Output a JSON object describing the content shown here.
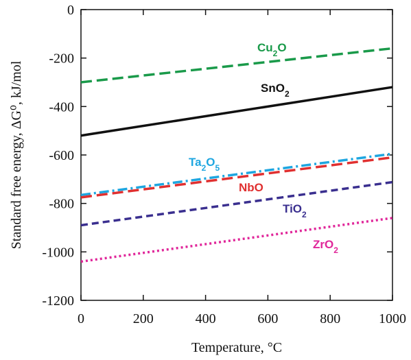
{
  "chart_data": {
    "type": "line",
    "xlabel": "Temperature, °C",
    "ylabel": "Standard free energy, ΔG⁰, kJ/mol",
    "xlim": [
      0,
      1000
    ],
    "ylim": [
      -1200,
      0
    ],
    "xticks": [
      0,
      200,
      400,
      600,
      800,
      1000
    ],
    "yticks": [
      0,
      -200,
      -400,
      -600,
      -800,
      -1000,
      -1200
    ],
    "grid": false,
    "series": [
      {
        "name": "Cu2O",
        "color": "#1a9a4a",
        "dash": "long-dash",
        "x": [
          0,
          1000
        ],
        "y": [
          -300,
          -160
        ]
      },
      {
        "name": "SnO2",
        "color": "#111111",
        "dash": "solid",
        "x": [
          0,
          1000
        ],
        "y": [
          -520,
          -320
        ]
      },
      {
        "name": "Ta2O5",
        "color": "#1ea6e0",
        "dash": "dash-dot",
        "x": [
          0,
          1000
        ],
        "y": [
          -765,
          -595
        ]
      },
      {
        "name": "NbO",
        "color": "#e03030",
        "dash": "long-dash",
        "x": [
          0,
          1000
        ],
        "y": [
          -775,
          -610
        ]
      },
      {
        "name": "TiO2",
        "color": "#3a2f8f",
        "dash": "dash",
        "x": [
          0,
          1000
        ],
        "y": [
          -890,
          -712
        ]
      },
      {
        "name": "ZrO2",
        "color": "#e0279a",
        "dash": "dot",
        "x": [
          0,
          1000
        ],
        "y": [
          -1040,
          -860
        ]
      }
    ]
  }
}
